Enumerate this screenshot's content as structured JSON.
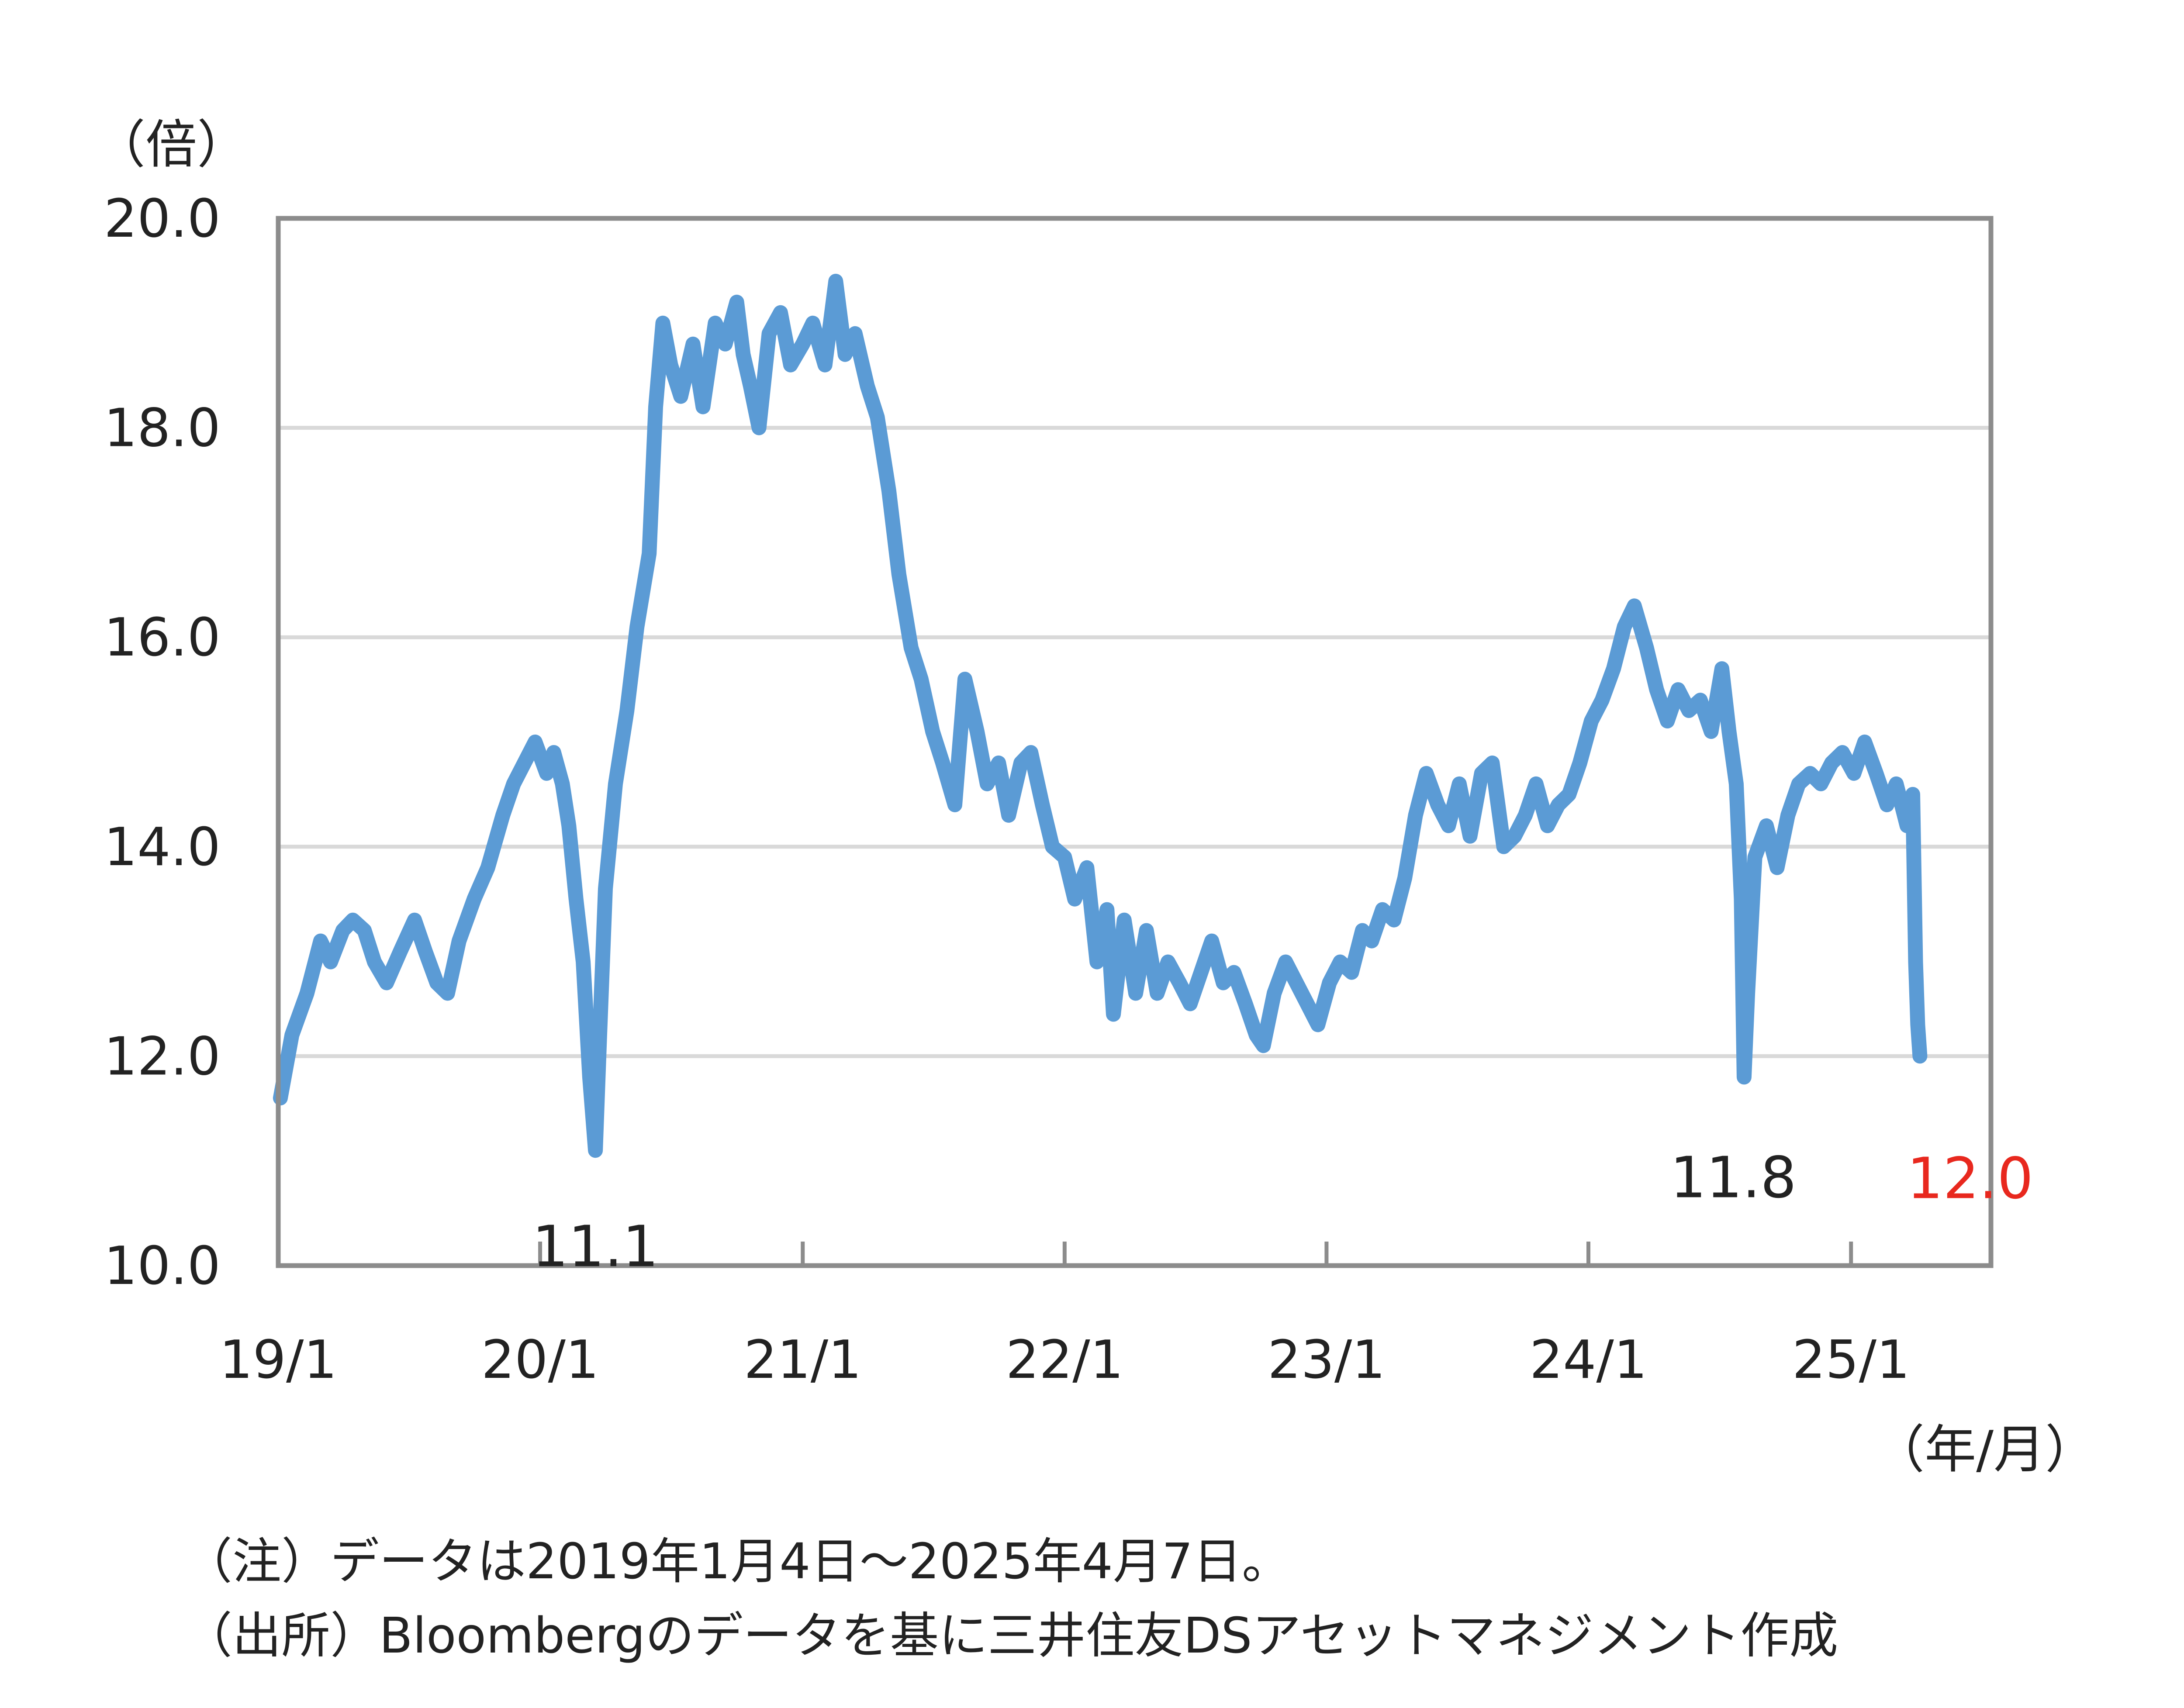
{
  "chart_data": {
    "type": "line",
    "y_unit_label": "（倍）",
    "x_unit_label": "（年/月）",
    "ylim": [
      10.0,
      20.0
    ],
    "y_ticks": [
      "10.0",
      "12.0",
      "14.0",
      "16.0",
      "18.0",
      "20.0"
    ],
    "x_ticks": [
      "19/1",
      "20/1",
      "21/1",
      "22/1",
      "23/1",
      "24/1",
      "25/1"
    ],
    "xlim": [
      "2019-01-01",
      "2025-07-15"
    ],
    "grid": "horizontal",
    "line_color": "#5b9bd5",
    "series": [
      {
        "x": [
          "2019-01-04",
          "2019-01-20",
          "2019-02-10",
          "2019-03-01",
          "2019-03-15",
          "2019-04-01",
          "2019-04-15",
          "2019-05-01",
          "2019-05-15",
          "2019-06-01",
          "2019-06-20",
          "2019-07-10",
          "2019-07-25",
          "2019-08-10",
          "2019-08-25",
          "2019-09-10",
          "2019-10-01",
          "2019-10-20",
          "2019-11-10",
          "2019-11-25",
          "2019-12-10",
          "2019-12-25",
          "2020-01-10",
          "2020-01-20",
          "2020-02-01",
          "2020-02-10",
          "2020-02-20",
          "2020-03-01",
          "2020-03-10",
          "2020-03-18",
          "2020-03-24",
          "2020-04-01",
          "2020-04-15",
          "2020-05-01",
          "2020-05-15",
          "2020-06-01",
          "2020-06-10",
          "2020-06-20",
          "2020-07-01",
          "2020-07-15",
          "2020-08-01",
          "2020-08-15",
          "2020-09-01",
          "2020-09-15",
          "2020-10-01",
          "2020-10-10",
          "2020-10-20",
          "2020-11-01",
          "2020-11-15",
          "2020-12-01",
          "2020-12-15",
          "2021-01-01",
          "2021-01-15",
          "2021-02-01",
          "2021-02-16",
          "2021-03-01",
          "2021-03-15",
          "2021-04-01",
          "2021-04-15",
          "2021-05-01",
          "2021-05-15",
          "2021-06-01",
          "2021-06-15",
          "2021-07-01",
          "2021-07-15",
          "2021-08-01",
          "2021-08-15",
          "2021-09-01",
          "2021-09-15",
          "2021-10-01",
          "2021-10-15",
          "2021-11-01",
          "2021-11-15",
          "2021-12-01",
          "2021-12-15",
          "2022-01-01",
          "2022-01-15",
          "2022-02-01",
          "2022-02-15",
          "2022-03-01",
          "2022-03-10",
          "2022-03-25",
          "2022-04-10",
          "2022-04-25",
          "2022-05-10",
          "2022-05-25",
          "2022-06-10",
          "2022-06-25",
          "2022-07-10",
          "2022-07-25",
          "2022-08-10",
          "2022-08-25",
          "2022-09-10",
          "2022-09-25",
          "2022-10-05",
          "2022-10-20",
          "2022-11-05",
          "2022-11-20",
          "2022-12-05",
          "2022-12-20",
          "2023-01-05",
          "2023-01-20",
          "2023-02-05",
          "2023-02-20",
          "2023-03-05",
          "2023-03-20",
          "2023-04-05",
          "2023-04-20",
          "2023-05-05",
          "2023-05-20",
          "2023-06-05",
          "2023-06-20",
          "2023-07-05",
          "2023-07-20",
          "2023-08-05",
          "2023-08-20",
          "2023-09-05",
          "2023-09-20",
          "2023-10-05",
          "2023-10-20",
          "2023-11-05",
          "2023-11-20",
          "2023-12-05",
          "2023-12-20",
          "2024-01-05",
          "2024-01-20",
          "2024-02-05",
          "2024-02-20",
          "2024-03-05",
          "2024-03-22",
          "2024-04-05",
          "2024-04-20",
          "2024-05-05",
          "2024-05-20",
          "2024-06-05",
          "2024-06-20",
          "2024-07-05",
          "2024-07-15",
          "2024-07-25",
          "2024-08-01",
          "2024-08-05",
          "2024-08-10",
          "2024-08-20",
          "2024-09-05",
          "2024-09-20",
          "2024-10-05",
          "2024-10-20",
          "2024-11-05",
          "2024-11-20",
          "2024-12-05",
          "2024-12-20",
          "2025-01-05",
          "2025-01-20",
          "2025-02-05",
          "2025-02-20",
          "2025-03-05",
          "2025-03-20",
          "2025-03-28",
          "2025-04-01",
          "2025-04-04",
          "2025-04-07"
        ],
        "y": [
          11.6,
          12.2,
          12.6,
          13.1,
          12.9,
          13.2,
          13.3,
          13.2,
          12.9,
          12.7,
          13.0,
          13.3,
          13.0,
          12.7,
          12.6,
          13.1,
          13.5,
          13.8,
          14.3,
          14.6,
          14.8,
          15.0,
          14.7,
          14.9,
          14.6,
          14.2,
          13.5,
          12.9,
          11.8,
          11.1,
          12.2,
          13.6,
          14.6,
          15.3,
          16.1,
          16.8,
          18.2,
          19.0,
          18.6,
          18.3,
          18.8,
          18.2,
          19.0,
          18.8,
          19.2,
          18.7,
          18.4,
          18.0,
          18.9,
          19.1,
          18.6,
          18.8,
          19.0,
          18.6,
          19.4,
          18.7,
          18.9,
          18.4,
          18.1,
          17.4,
          16.6,
          15.9,
          15.6,
          15.1,
          14.8,
          14.4,
          15.6,
          15.1,
          14.6,
          14.8,
          14.3,
          14.8,
          14.9,
          14.4,
          14.0,
          13.9,
          13.5,
          13.8,
          12.9,
          13.4,
          12.4,
          13.3,
          12.6,
          13.2,
          12.6,
          12.9,
          12.7,
          12.5,
          12.8,
          13.1,
          12.7,
          12.8,
          12.5,
          12.2,
          12.1,
          12.6,
          12.9,
          12.7,
          12.5,
          12.3,
          12.7,
          12.9,
          12.8,
          13.2,
          13.1,
          13.4,
          13.3,
          13.7,
          14.3,
          14.7,
          14.4,
          14.2,
          14.6,
          14.1,
          14.7,
          14.8,
          14.0,
          14.1,
          14.3,
          14.6,
          14.2,
          14.4,
          14.5,
          14.8,
          15.2,
          15.4,
          15.7,
          16.1,
          16.3,
          15.9,
          15.5,
          15.2,
          15.5,
          15.3,
          15.4,
          15.1,
          15.7,
          15.1,
          14.6,
          13.5,
          11.8,
          12.6,
          13.9,
          14.2,
          13.8,
          14.3,
          14.6,
          14.7,
          14.6,
          14.8,
          14.9,
          14.7,
          15.0,
          14.7,
          14.4,
          14.6,
          14.2,
          14.5,
          12.9,
          12.3,
          12.0
        ]
      }
    ],
    "annotations": [
      {
        "text": "11.1",
        "date": "2020-03-18",
        "value": 11.1,
        "color": "#222222"
      },
      {
        "text": "11.8",
        "date": "2024-08-05",
        "value": 11.8,
        "color": "#222222"
      },
      {
        "text": "12.0",
        "date": "2025-04-07",
        "value": 12.0,
        "color": "#e8281e"
      }
    ]
  },
  "notes": [
    "（注）データは2019年1月4日～2025年4月7日。",
    "（出所）Bloombergのデータを基に三井住友DSアセットマネジメント作成"
  ]
}
